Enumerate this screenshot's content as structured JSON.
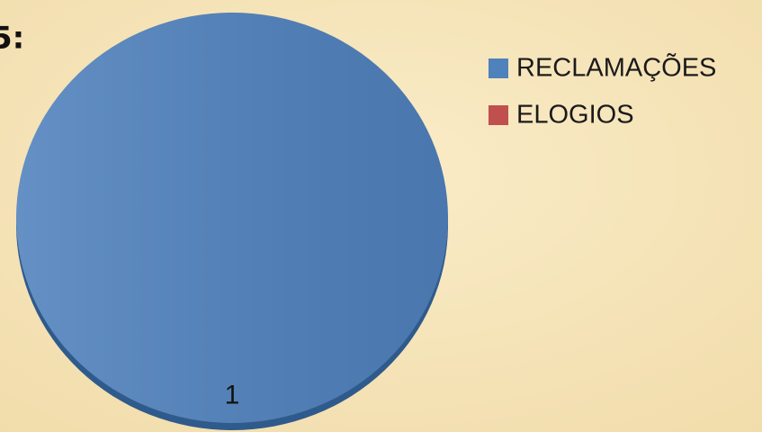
{
  "chart_data": {
    "type": "pie",
    "title": "5:",
    "categories": [
      "RECLAMAÇÕES",
      "ELOGIOS"
    ],
    "values": [
      1,
      0
    ],
    "colors": [
      "#4f81bd",
      "#c0504d"
    ],
    "legend": "right"
  }
}
